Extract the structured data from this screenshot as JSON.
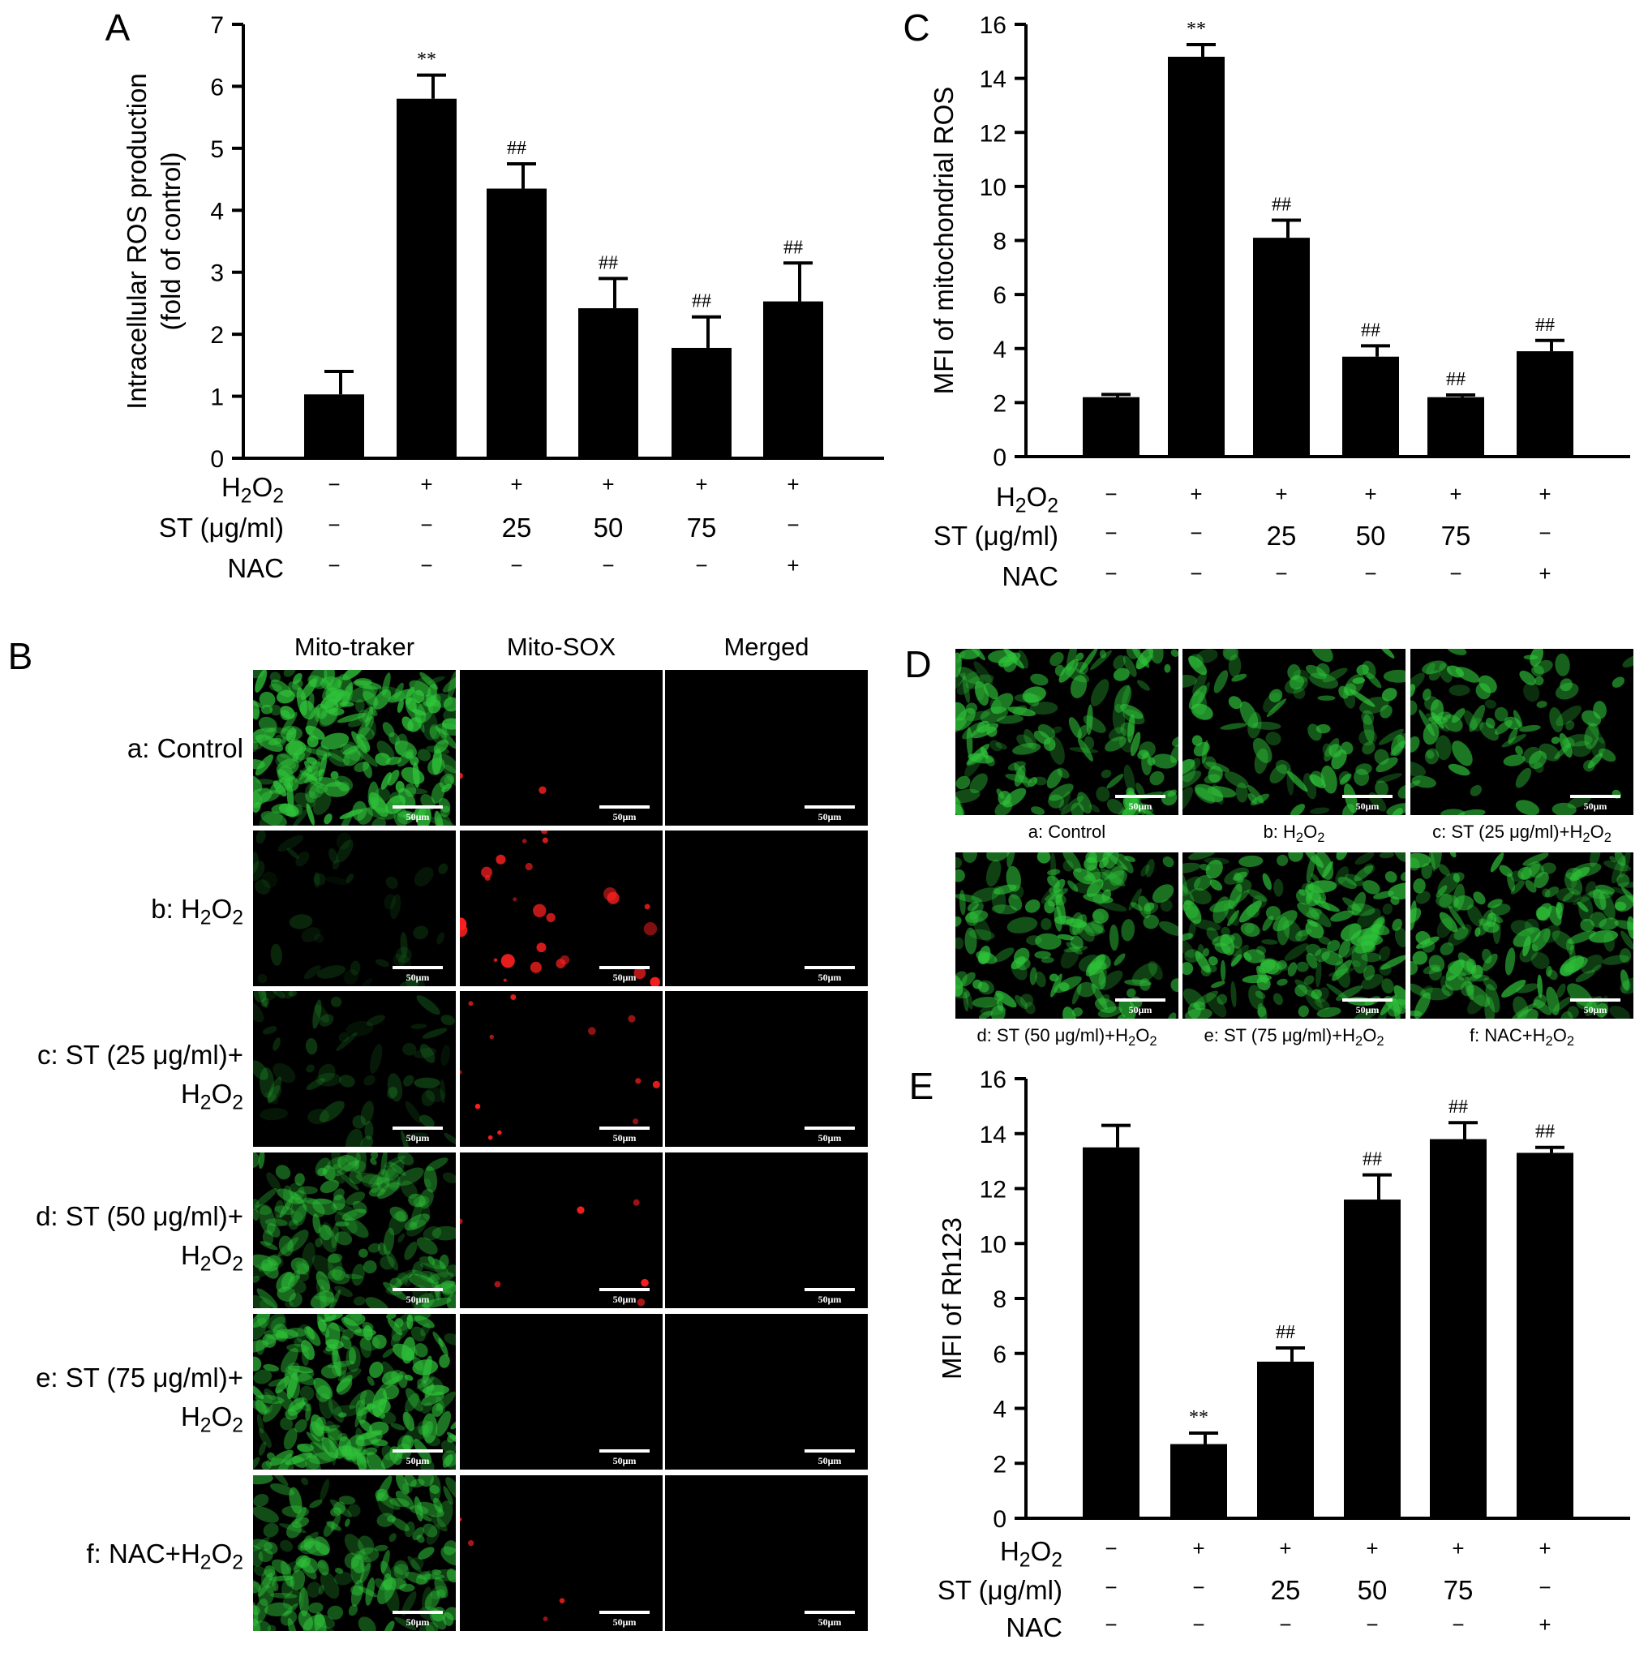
{
  "colors": {
    "bar": "#000000",
    "cell_green": "#2fc43a",
    "cell_red": "#ff2020",
    "background": "#000000"
  },
  "panels": {
    "A": {
      "letter": "A"
    },
    "B": {
      "letter": "B",
      "columns": [
        "Mito-traker",
        "Mito-SOX",
        "Merged"
      ],
      "rows": [
        {
          "label_lines": [
            "a: Control"
          ]
        },
        {
          "label_lines": [
            "b: H2O2"
          ]
        },
        {
          "label_lines": [
            "c: ST (25 μg/ml)+",
            "H2O2"
          ]
        },
        {
          "label_lines": [
            "d: ST (50 μg/ml)+",
            "H2O2"
          ]
        },
        {
          "label_lines": [
            "e: ST (75 μg/ml)+",
            "H2O2"
          ]
        },
        {
          "label_lines": [
            "f: NAC+H2O2"
          ]
        }
      ],
      "scale_bar": "50μm"
    },
    "C": {
      "letter": "C"
    },
    "D": {
      "letter": "D",
      "captions": [
        "a: Control",
        "b: H2O2",
        "c: ST (25 μg/ml)+H2O2",
        "d: ST (50 μg/ml)+H2O2",
        "e: ST (75 μg/ml)+H2O2",
        "f: NAC+H2O2"
      ],
      "scale_bar": "50μm"
    },
    "E": {
      "letter": "E"
    }
  },
  "treatment_table": {
    "row_labels": [
      "H2O2",
      "ST (μg/ml)",
      "NAC"
    ],
    "H2O2": [
      "−",
      "+",
      "+",
      "+",
      "+",
      "+"
    ],
    "ST": [
      "−",
      "−",
      "25",
      "50",
      "75",
      "−"
    ],
    "NAC": [
      "−",
      "−",
      "−",
      "−",
      "−",
      "+"
    ]
  },
  "chart_data": [
    {
      "panel": "A",
      "type": "bar",
      "categories": [
        "Control",
        "H2O2",
        "ST 25+H2O2",
        "ST 50+H2O2",
        "ST 75+H2O2",
        "NAC+H2O2"
      ],
      "values": [
        1.03,
        5.8,
        4.35,
        2.42,
        1.78,
        2.53
      ],
      "errors": [
        0.37,
        0.38,
        0.4,
        0.48,
        0.5,
        0.62
      ],
      "annotations": [
        "",
        "**",
        "##",
        "##",
        "##",
        "##"
      ],
      "ylabel": "Intracellular ROS production",
      "ylabel2": "(fold of control)",
      "ylim": [
        0,
        7
      ],
      "yticks": [
        0,
        1,
        2,
        3,
        4,
        5,
        6,
        7
      ]
    },
    {
      "panel": "C",
      "type": "bar",
      "categories": [
        "Control",
        "H2O2",
        "ST 25+H2O2",
        "ST 50+H2O2",
        "ST 75+H2O2",
        "NAC+H2O2"
      ],
      "values": [
        2.2,
        14.8,
        8.1,
        3.7,
        2.2,
        3.9
      ],
      "errors": [
        0.1,
        0.45,
        0.65,
        0.4,
        0.08,
        0.4
      ],
      "annotations": [
        "",
        "**",
        "##",
        "##",
        "##",
        "##"
      ],
      "ylabel": "MFI of mitochondrial ROS",
      "ylim": [
        0,
        16
      ],
      "yticks": [
        0,
        2,
        4,
        6,
        8,
        10,
        12,
        14,
        16
      ]
    },
    {
      "panel": "E",
      "type": "bar",
      "categories": [
        "Control",
        "H2O2",
        "ST 25+H2O2",
        "ST 50+H2O2",
        "ST 75+H2O2",
        "NAC+H2O2"
      ],
      "values": [
        13.5,
        2.7,
        5.7,
        11.6,
        13.8,
        13.3
      ],
      "errors": [
        0.8,
        0.4,
        0.5,
        0.9,
        0.6,
        0.2
      ],
      "annotations": [
        "",
        "**",
        "##",
        "##",
        "##",
        "##"
      ],
      "ylabel": "MFI of Rh123",
      "ylim": [
        0,
        16
      ],
      "yticks": [
        0,
        2,
        4,
        6,
        8,
        10,
        12,
        14,
        16
      ]
    }
  ]
}
